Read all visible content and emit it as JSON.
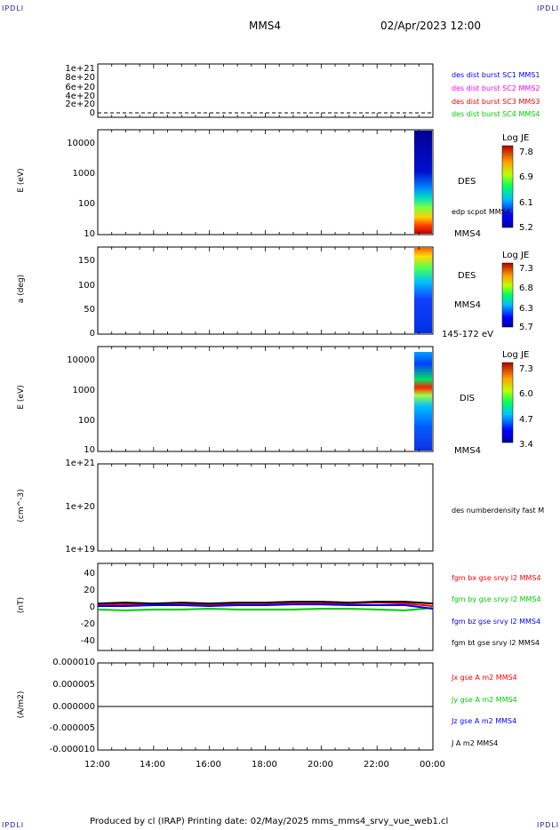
{
  "corner_labels": [
    "IPDLI",
    "IPDLI",
    "IPDLI",
    "IPDLI"
  ],
  "header": {
    "spacecraft": "MMS4",
    "date_time": "02/Apr/2023 12:00"
  },
  "footer": {
    "text": "Produced by cl (IRAP)   Printing date: 02/May/2025   mms_mms4_srvy_vue_web1.cl"
  },
  "colors": {
    "mms1": "#0000ff",
    "mms2": "#ff00ff",
    "mms3": "#ff0000",
    "mms4": "#00cc00",
    "bx": "#ff0000",
    "by": "#00cc00",
    "bz": "#0000ff",
    "bt": "#000000"
  },
  "x_tick_labels": [
    "12:00",
    "14:00",
    "16:00",
    "18:00",
    "20:00",
    "22:00",
    "00:00"
  ],
  "panels": {
    "p1": {
      "y_ticks": [
        "1e+21",
        "8e+20",
        "6e+20",
        "4e+20",
        "2e+20",
        "0"
      ],
      "legend": [
        "des dist burst SC1 MMS1",
        "des dist burst SC2 MMS2",
        "des dist burst SC3 MMS3",
        "des dist burst SC4 MMS4"
      ]
    },
    "p2": {
      "ylabel": "E (eV)",
      "y_ticks": [
        "10000",
        "1000",
        "100",
        "10"
      ],
      "side_labels": [
        "DES",
        "edp scpot MMS4",
        "MMS4"
      ],
      "colorbar": {
        "title": "Log JE",
        "ticks": [
          "7.8",
          "6.9",
          "6.1",
          "5.2"
        ]
      }
    },
    "p3": {
      "ylabel": "a (deg)",
      "y_ticks": [
        "150",
        "100",
        "50",
        "0"
      ],
      "side_labels": [
        "DES",
        "MMS4",
        "145-172 eV"
      ],
      "colorbar": {
        "title": "Log JE",
        "ticks": [
          "7.3",
          "6.8",
          "6.3",
          "5.7"
        ]
      }
    },
    "p4": {
      "ylabel": "E (eV)",
      "y_ticks": [
        "10000",
        "1000",
        "100",
        "10"
      ],
      "side_labels": [
        "DIS",
        "MMS4"
      ],
      "colorbar": {
        "title": "Log JE",
        "ticks": [
          "7.3",
          "6.0",
          "4.7",
          "3.4"
        ]
      }
    },
    "p5": {
      "ylabel": "(cm^-3)",
      "y_ticks": [
        "1e+21",
        "1e+20",
        "1e+19"
      ],
      "legend": [
        "des numberdensity fast M"
      ]
    },
    "p6": {
      "ylabel": "(nT)",
      "y_ticks": [
        "40",
        "20",
        "0",
        "-20",
        "-40"
      ],
      "legend": [
        "fgm bx gse srvy l2 MMS4",
        "fgm by gse srvy l2 MMS4",
        "fgm bz gse srvy l2 MMS4",
        "fgm bt gse srvy l2 MMS4"
      ]
    },
    "p7": {
      "ylabel": "(A/m2)",
      "y_ticks": [
        "0.000010",
        "0.000005",
        "0.000000",
        "-0.000005",
        "-0.000010"
      ],
      "legend": [
        "Jx gse A m2 MMS4",
        "Jy gse A m2 MMS4",
        "Jz gse A m2 MMS4",
        "J A m2 MMS4"
      ]
    }
  },
  "chart_data": [
    {
      "type": "line",
      "title": "",
      "x": [
        "12:00",
        "13:00",
        "14:00",
        "15:00",
        "16:00",
        "17:00",
        "18:00",
        "19:00",
        "20:00",
        "21:00",
        "22:00",
        "23:00",
        "00:00"
      ],
      "series": [
        {
          "name": "fgm bx gse srvy l2 MMS4",
          "values": [
            2,
            3,
            2,
            3,
            3,
            3,
            3,
            4,
            4,
            4,
            5,
            4,
            1
          ]
        },
        {
          "name": "fgm by gse srvy l2 MMS4",
          "values": [
            -3,
            -4,
            -3,
            -3,
            -2,
            -3,
            -3,
            -3,
            -2,
            -2,
            -3,
            -4,
            -1
          ]
        },
        {
          "name": "fgm bz gse srvy l2 MMS4",
          "values": [
            1,
            1,
            2,
            2,
            1,
            2,
            2,
            3,
            3,
            2,
            2,
            2,
            -2
          ]
        },
        {
          "name": "fgm bt gse srvy l2 MMS4",
          "values": [
            4,
            5,
            4,
            5,
            4,
            5,
            5,
            6,
            6,
            5,
            6,
            6,
            4
          ]
        }
      ],
      "ylabel": "(nT)",
      "ylim": [
        -50,
        50
      ]
    },
    {
      "type": "line",
      "title": "",
      "x": [
        "12:00",
        "14:00",
        "16:00",
        "18:00",
        "20:00",
        "22:00",
        "00:00"
      ],
      "series": [
        {
          "name": "J A m2 MMS4",
          "values": [
            0,
            0,
            0,
            0,
            0,
            0,
            0
          ]
        }
      ],
      "ylabel": "(A/m2)",
      "ylim": [
        -1e-05,
        1e-05
      ]
    }
  ]
}
